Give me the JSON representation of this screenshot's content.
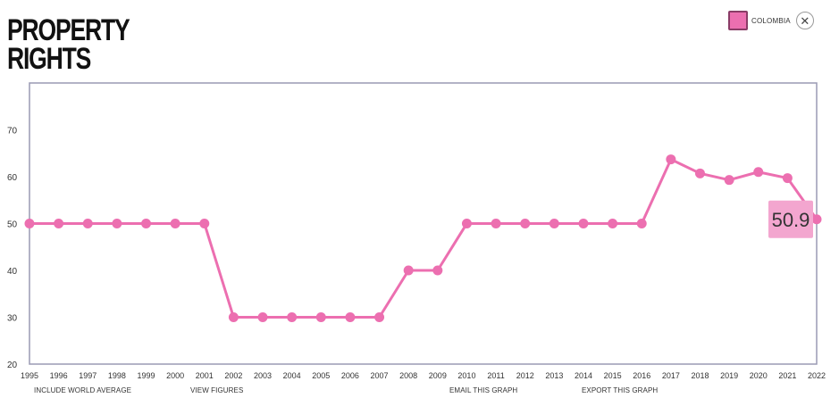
{
  "title_line1": "PROPERTY",
  "title_line2": "RIGHTS",
  "legend": {
    "label": "COLOMBIA",
    "close_glyph": "✕",
    "close_icon": "close-icon"
  },
  "footer": {
    "include_world_average": "INCLUDE WORLD AVERAGE",
    "view_figures": "VIEW FIGURES",
    "email_graph": "EMAIL THIS GRAPH",
    "export_graph": "EXPORT THIS GRAPH"
  },
  "chart_data": {
    "type": "line",
    "title": "PROPERTY RIGHTS",
    "x": [
      1995,
      1996,
      1997,
      1998,
      1999,
      2000,
      2001,
      2002,
      2003,
      2004,
      2005,
      2006,
      2007,
      2008,
      2009,
      2010,
      2011,
      2012,
      2013,
      2014,
      2015,
      2016,
      2017,
      2018,
      2019,
      2020,
      2021,
      2022
    ],
    "series": [
      {
        "name": "COLOMBIA",
        "color": "#ec6fb0",
        "values": [
          50,
          50,
          50,
          50,
          50,
          50,
          50,
          30,
          30,
          30,
          30,
          30,
          30,
          40,
          40,
          50,
          50,
          50,
          50,
          50,
          50,
          50,
          63.7,
          60.7,
          59.3,
          61,
          59.7,
          50.9
        ]
      }
    ],
    "yticks": [
      20,
      30,
      40,
      50,
      60,
      70
    ],
    "ylim": [
      20,
      80
    ],
    "grid": false,
    "legend_position": "top-right",
    "callout": {
      "year": 2022,
      "label": "50.9"
    },
    "colors": {
      "line": "#ec6fb0",
      "callout_bg": "#f3a6cf",
      "frame": "#9a9ab4"
    }
  }
}
